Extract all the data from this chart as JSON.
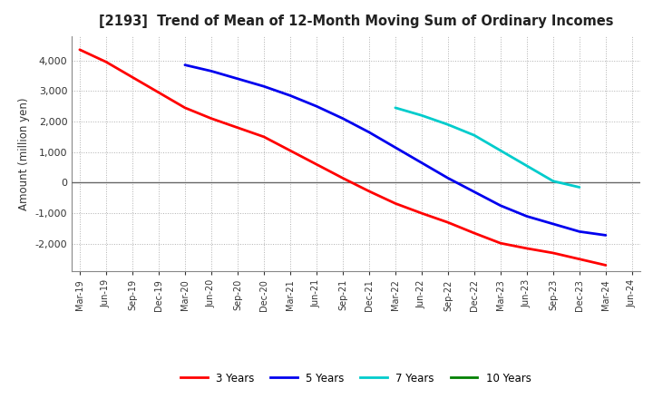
{
  "title": "[2193]  Trend of Mean of 12-Month Moving Sum of Ordinary Incomes",
  "ylabel": "Amount (million yen)",
  "background_color": "#ffffff",
  "grid_color": "#b0b0b0",
  "x_labels": [
    "Mar-19",
    "Jun-19",
    "Sep-19",
    "Dec-19",
    "Mar-20",
    "Jun-20",
    "Sep-20",
    "Dec-20",
    "Mar-21",
    "Jun-21",
    "Sep-21",
    "Dec-21",
    "Mar-22",
    "Jun-22",
    "Sep-22",
    "Dec-22",
    "Mar-23",
    "Jun-23",
    "Sep-23",
    "Dec-23",
    "Mar-24",
    "Jun-24"
  ],
  "series": {
    "3 Years": {
      "color": "#ff0000",
      "x_indices": [
        0,
        1,
        2,
        3,
        4,
        5,
        6,
        7,
        8,
        9,
        10,
        11,
        12,
        13,
        14,
        15,
        16,
        17,
        18,
        19,
        20
      ],
      "values": [
        4350,
        3950,
        3450,
        2950,
        2450,
        2100,
        1800,
        1500,
        1050,
        600,
        150,
        -280,
        -680,
        -1000,
        -1300,
        -1650,
        -1980,
        -2150,
        -2300,
        -2500,
        -2700
      ]
    },
    "5 Years": {
      "color": "#0000ee",
      "x_indices": [
        4,
        5,
        6,
        7,
        8,
        9,
        10,
        11,
        12,
        13,
        14,
        15,
        16,
        17,
        18,
        19,
        20
      ],
      "values": [
        3850,
        3650,
        3400,
        3150,
        2850,
        2500,
        2100,
        1650,
        1150,
        650,
        150,
        -300,
        -750,
        -1100,
        -1350,
        -1600,
        -1720
      ]
    },
    "7 Years": {
      "color": "#00cccc",
      "x_indices": [
        12,
        13,
        14,
        15,
        16,
        17,
        18,
        19
      ],
      "values": [
        2450,
        2200,
        1900,
        1550,
        1050,
        550,
        50,
        -150
      ]
    },
    "10 Years": {
      "color": "#008000",
      "x_indices": [],
      "values": []
    }
  },
  "ylim": [
    -2900,
    4800
  ],
  "yticks": [
    -2000,
    -1000,
    0,
    1000,
    2000,
    3000,
    4000
  ],
  "zero_line_color": "#666666",
  "legend_colors": [
    "#ff0000",
    "#0000ee",
    "#00cccc",
    "#008000"
  ],
  "legend_labels": [
    "3 Years",
    "5 Years",
    "7 Years",
    "10 Years"
  ]
}
